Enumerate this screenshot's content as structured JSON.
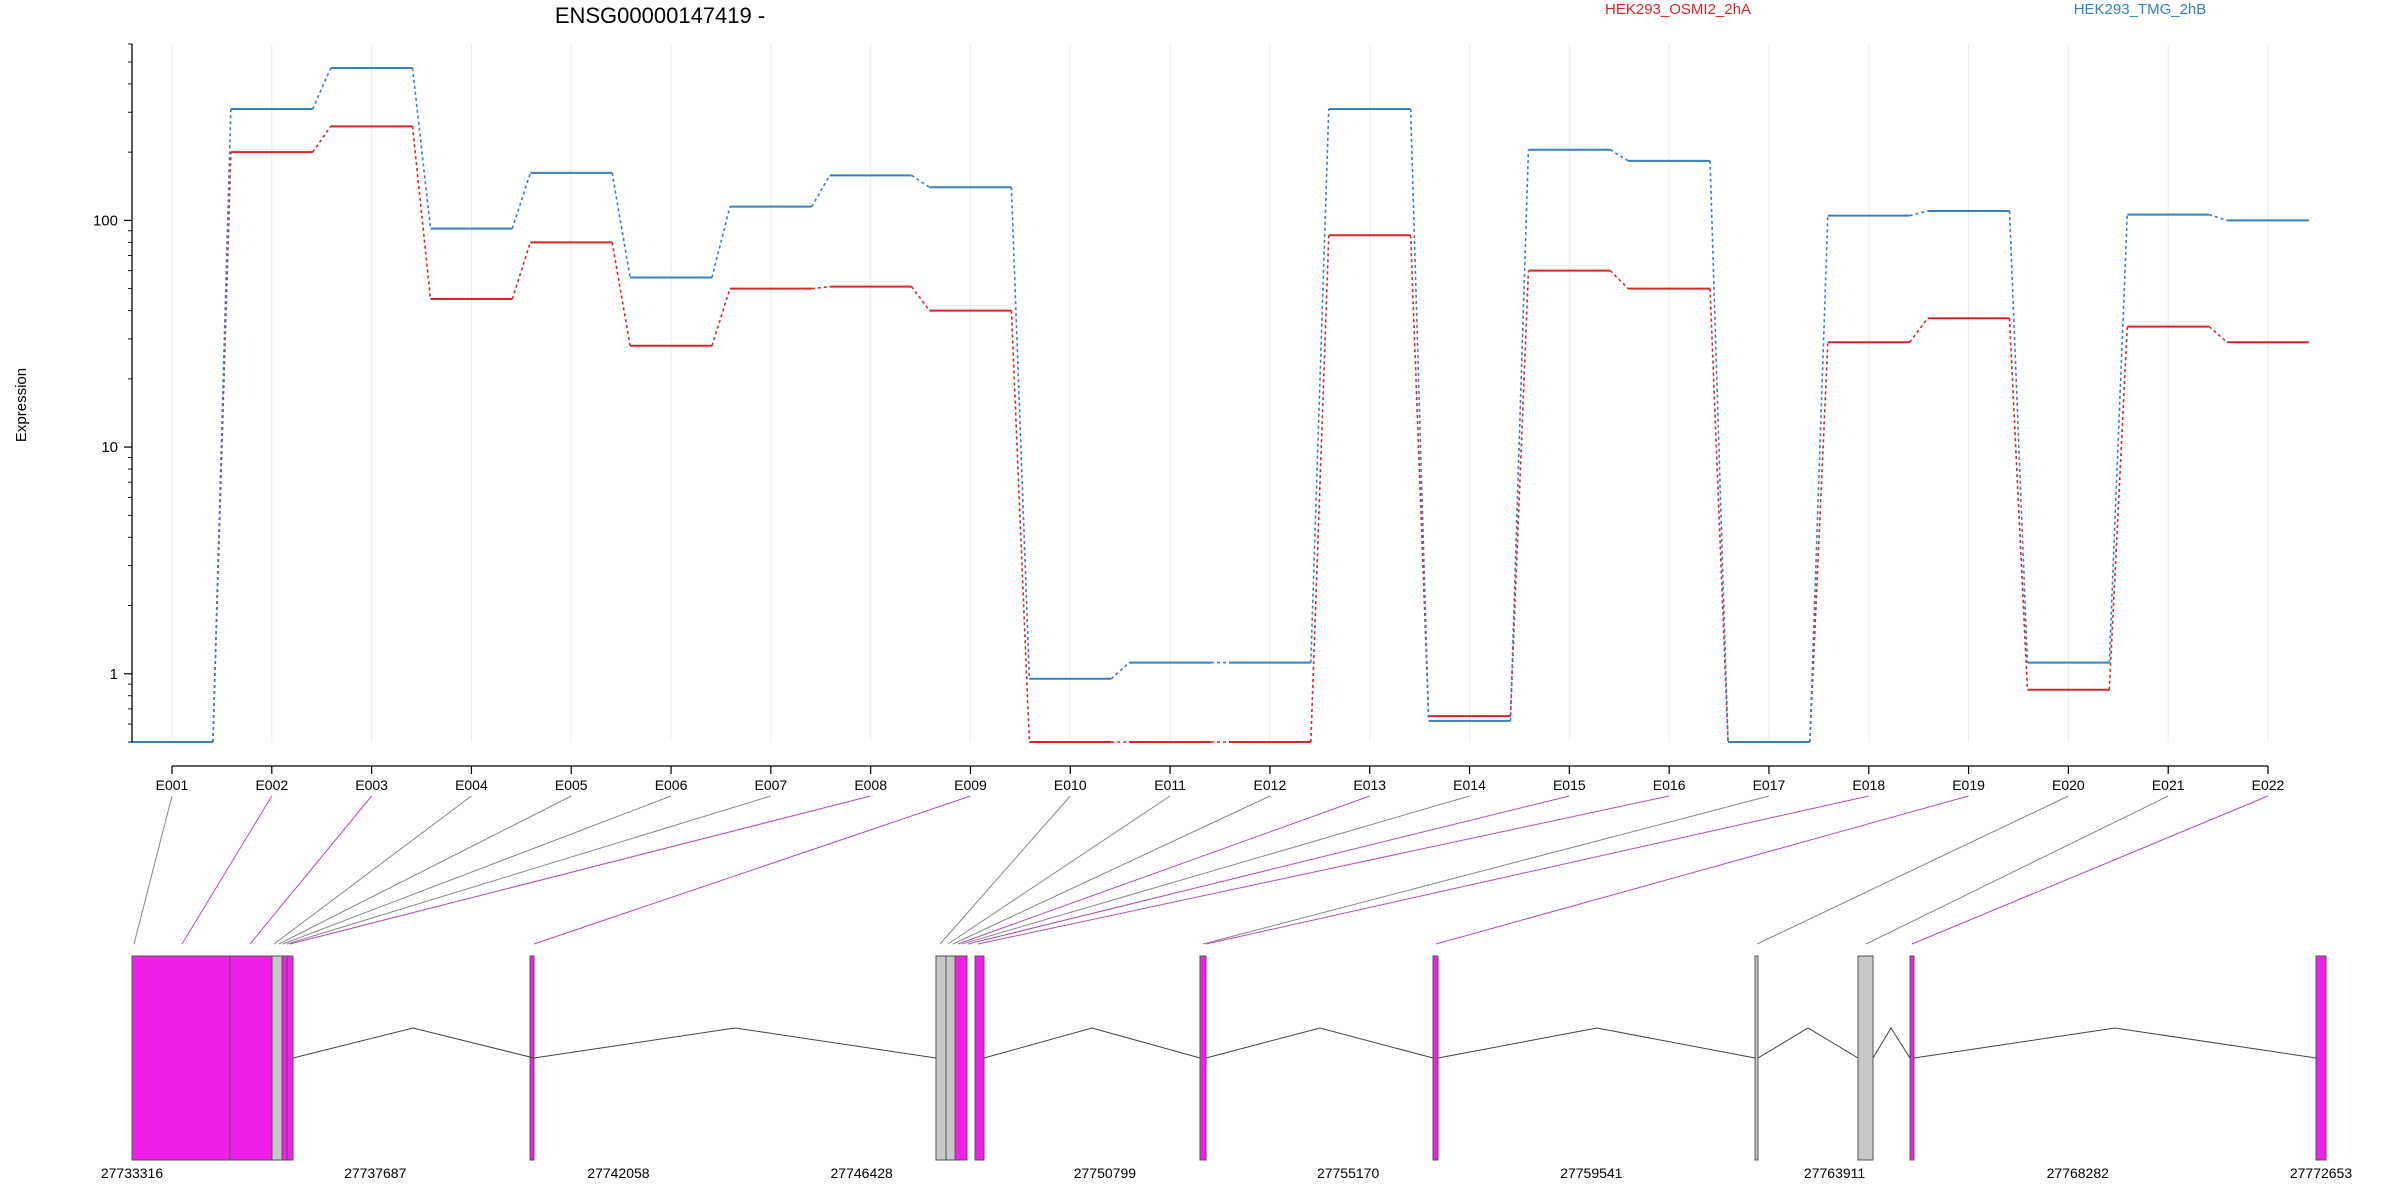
{
  "chart_data": {
    "type": "line",
    "title": "ENSG00000147419 -",
    "ylabel": "Expression",
    "y_scale": "log",
    "yticks": [
      1,
      10,
      100
    ],
    "ytick_labels": [
      "1",
      "10",
      "100"
    ],
    "ylim": [
      0.5,
      600
    ],
    "categories": [
      "E001",
      "E002",
      "E003",
      "E004",
      "E005",
      "E006",
      "E007",
      "E008",
      "E009",
      "E010",
      "E011",
      "E012",
      "E013",
      "E014",
      "E015",
      "E016",
      "E017",
      "E018",
      "E019",
      "E020",
      "E021",
      "E022"
    ],
    "grid": "vertical",
    "legend_position": "top",
    "series": [
      {
        "name": "HEK293_OSMI2_2hA",
        "color": "#d62728",
        "values": [
          0.5,
          200,
          260,
          45,
          80,
          28,
          50,
          51,
          40,
          0.5,
          0.5,
          0.5,
          86,
          0.65,
          60,
          50,
          0.5,
          29,
          37,
          0.85,
          34,
          29
        ]
      },
      {
        "name": "HEK293_TMG_2hB",
        "color": "#3a7fbf",
        "values": [
          0.5,
          310,
          470,
          92,
          162,
          56,
          115,
          158,
          140,
          0.95,
          1.12,
          1.12,
          310,
          0.62,
          205,
          183,
          0.5,
          105,
          110,
          1.12,
          106,
          100
        ]
      }
    ],
    "gene_model": {
      "coordinate_ticks": [
        "27733316",
        "27737687",
        "27742058",
        "27746428",
        "27750799",
        "27755170",
        "27759541",
        "27763911",
        "27768282",
        "27772653"
      ],
      "exon_colors": {
        "tested": "#f020e8",
        "untested": "#c8c8c8"
      }
    }
  }
}
